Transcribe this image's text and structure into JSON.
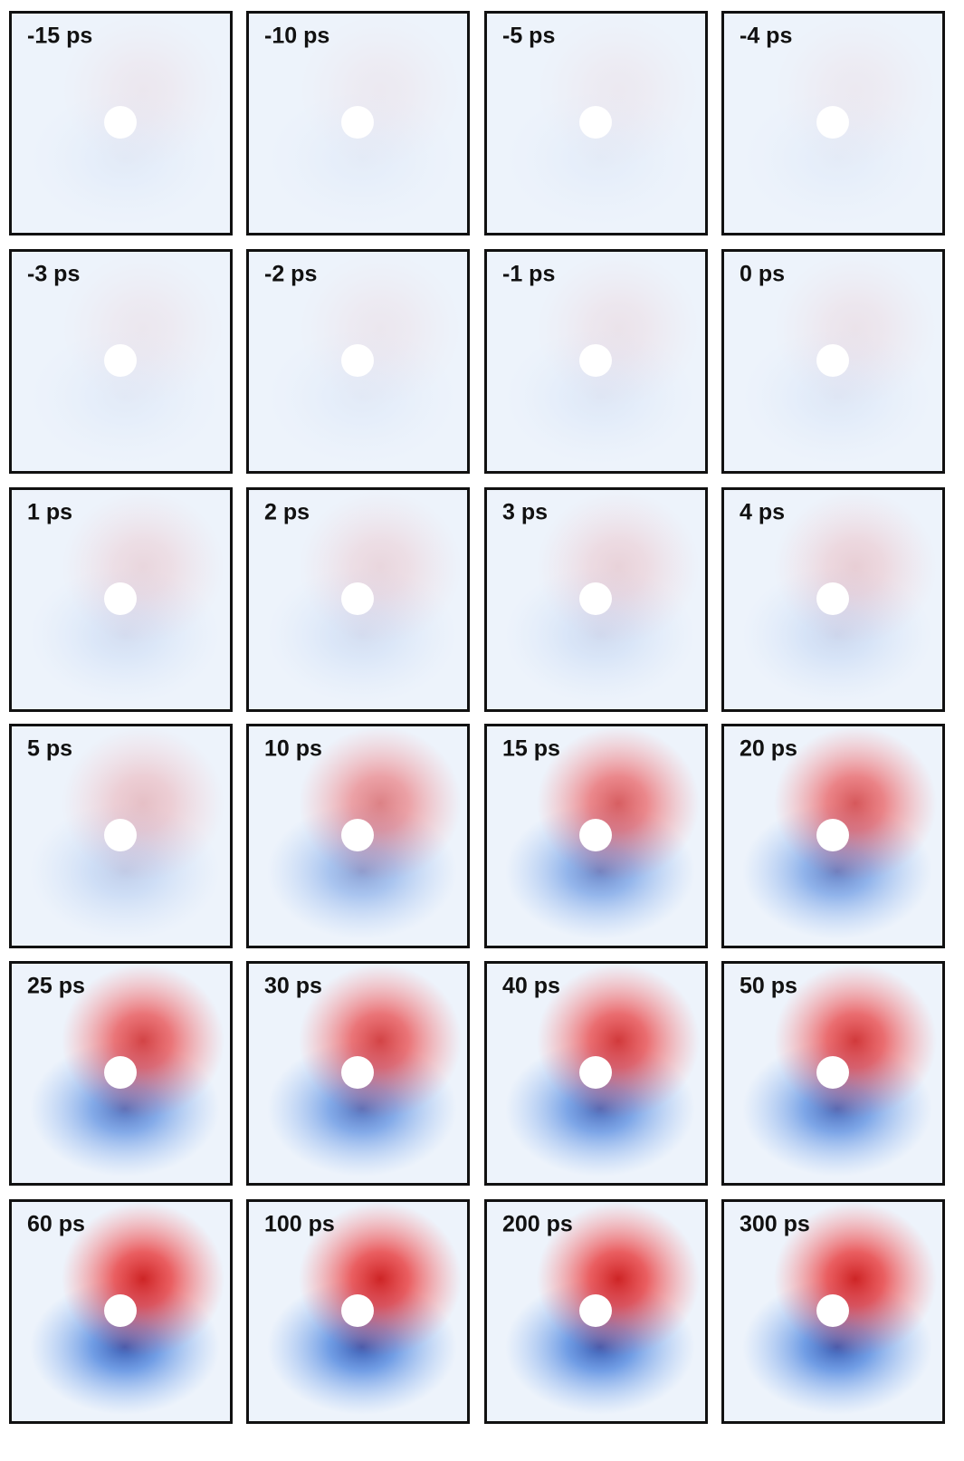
{
  "panels": [
    {
      "label": "-15 ps"
    },
    {
      "label": "-10 ps"
    },
    {
      "label": "-5 ps"
    },
    {
      "label": "-4 ps"
    },
    {
      "label": "-3 ps"
    },
    {
      "label": "-2 ps"
    },
    {
      "label": "-1 ps"
    },
    {
      "label": "0 ps"
    },
    {
      "label": "1 ps"
    },
    {
      "label": "2 ps"
    },
    {
      "label": "3 ps"
    },
    {
      "label": "4 ps"
    },
    {
      "label": "5 ps"
    },
    {
      "label": "10 ps"
    },
    {
      "label": "15 ps"
    },
    {
      "label": "20 ps"
    },
    {
      "label": "25 ps"
    },
    {
      "label": "30 ps"
    },
    {
      "label": "40 ps"
    },
    {
      "label": "50 ps"
    },
    {
      "label": "60 ps"
    },
    {
      "label": "100 ps"
    },
    {
      "label": "200 ps"
    },
    {
      "label": "300 ps"
    }
  ]
}
